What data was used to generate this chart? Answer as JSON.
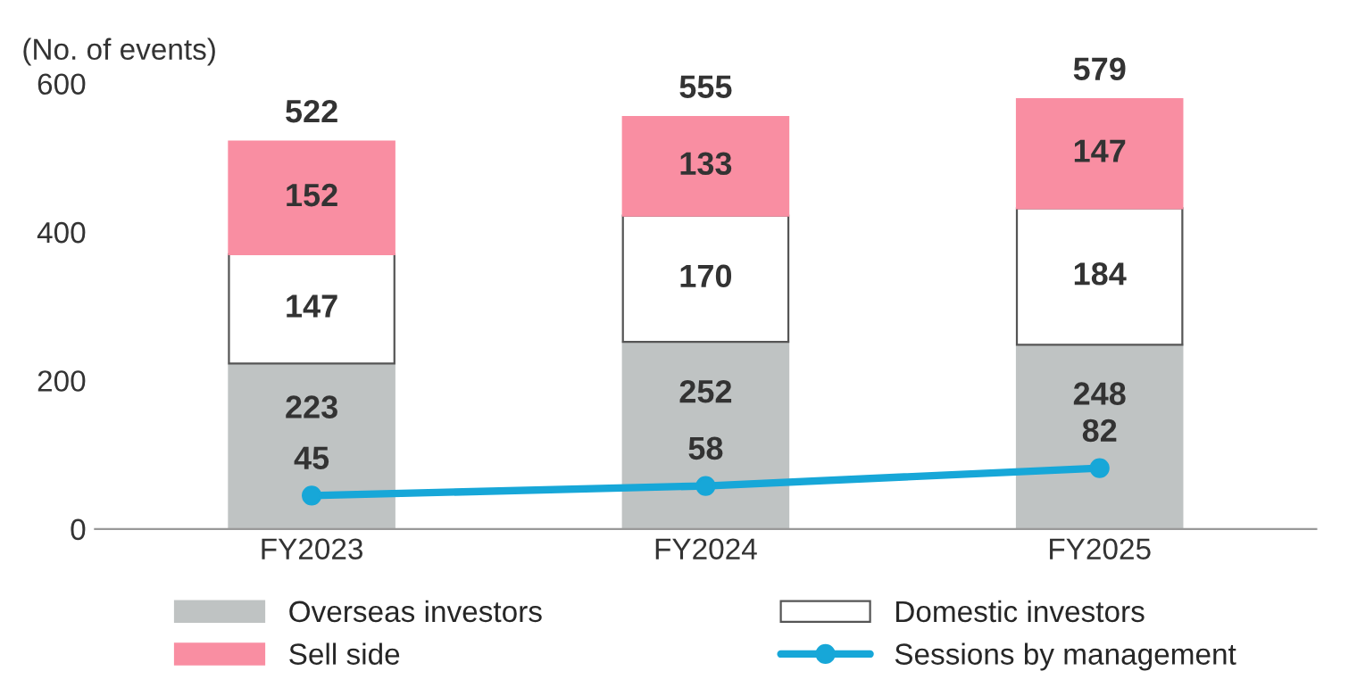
{
  "chart_data": {
    "type": "bar",
    "stacked": true,
    "ylabel": "(No. of events)",
    "categories": [
      "FY2023",
      "FY2024",
      "FY2025"
    ],
    "series": [
      {
        "name": "Overseas investors",
        "color": "#bfc3c3",
        "values": [
          223,
          252,
          248
        ]
      },
      {
        "name": "Domestic investors",
        "color": "#ffffff",
        "values": [
          147,
          170,
          184
        ]
      },
      {
        "name": "Sell side",
        "color": "#f98ea2",
        "values": [
          152,
          133,
          147
        ]
      },
      {
        "name": "Sessions by management",
        "type": "line",
        "color": "#17a7d8",
        "values": [
          45,
          58,
          82
        ],
        "marker": "circle"
      }
    ],
    "totals": [
      "522",
      "555",
      "579"
    ],
    "data_labels": true,
    "ylim": [
      0,
      600
    ],
    "yticks": [
      0,
      200,
      400,
      600
    ],
    "grid": false,
    "legend": "bottom"
  }
}
